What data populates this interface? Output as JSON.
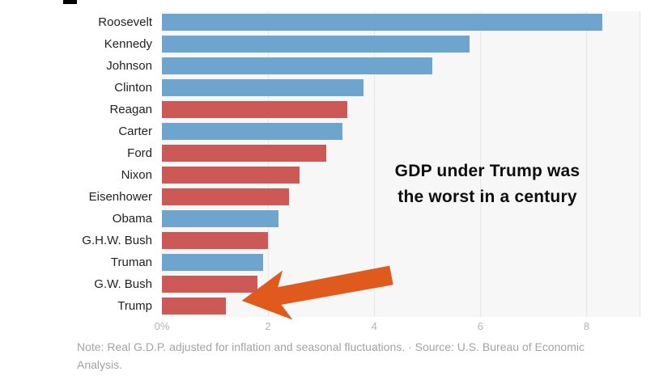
{
  "page": {
    "background": "#ffffff"
  },
  "annotation": {
    "line1": "GDP under Trump was",
    "line2": "the worst in a century"
  },
  "arrow": {
    "name": "orange-arrow-pointing-to-trump-bar",
    "color": "#e0591d"
  },
  "footer": {
    "note": "Note: Real G.D.P. adjusted for inflation and seasonal fluctuations.  ·  Source: U.S. Bureau of Economic Analysis."
  },
  "chart_data": {
    "type": "bar",
    "orientation": "horizontal",
    "title": "",
    "annotation": "GDP under Trump was the worst in a century",
    "categories": [
      "Roosevelt",
      "Kennedy",
      "Johnson",
      "Clinton",
      "Reagan",
      "Carter",
      "Ford",
      "Nixon",
      "Eisenhower",
      "Obama",
      "G.H.W. Bush",
      "Truman",
      "G.W. Bush",
      "Trump"
    ],
    "values": [
      8.3,
      5.8,
      5.1,
      3.8,
      3.5,
      3.4,
      3.1,
      2.6,
      2.4,
      2.2,
      2.0,
      1.9,
      1.8,
      1.2
    ],
    "party": [
      "democrat",
      "democrat",
      "democrat",
      "democrat",
      "republican",
      "democrat",
      "republican",
      "republican",
      "republican",
      "democrat",
      "republican",
      "democrat",
      "republican",
      "republican"
    ],
    "colors": {
      "democrat": "#6ea5ce",
      "republican": "#cd5956"
    },
    "xlabel": "",
    "ylabel": "",
    "xlim": [
      0,
      9
    ],
    "xticks": {
      "values": [
        0,
        2,
        4,
        6,
        8
      ],
      "labels": [
        "0%",
        "2",
        "4",
        "6",
        "8"
      ]
    },
    "grid": true,
    "legend": "none",
    "note": "Note: Real G.D.P. adjusted for inflation and seasonal fluctuations.  ·  Source: U.S. Bureau of Economic Analysis."
  }
}
